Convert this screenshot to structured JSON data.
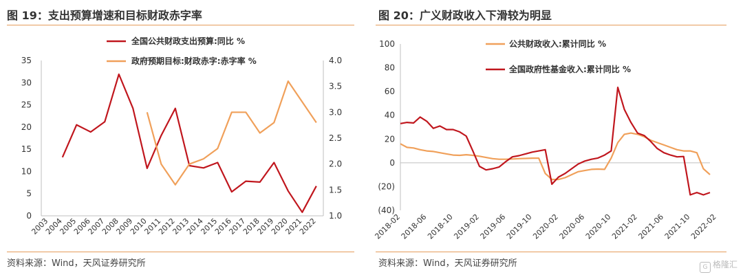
{
  "left_panel": {
    "title": "图 19：支出预算增速和目标财政赤字率",
    "source": "资料来源：Wind，天风证券研究所"
  },
  "right_panel": {
    "title": "图 20：广义财政收入下滑较为明显",
    "source": "资料来源：Wind，天风证券研究所"
  },
  "watermark": "格隆汇",
  "colors": {
    "red": "#c0161d",
    "orange": "#f0a05a",
    "rule": "#e59b5a",
    "axis": "#bfbfbf"
  },
  "chart_data": [
    {
      "type": "line",
      "categories": [
        "2003",
        "2004",
        "2005",
        "2006",
        "2007",
        "2008",
        "2009",
        "2010",
        "2011",
        "2012",
        "2013",
        "2014",
        "2015",
        "2016",
        "2017",
        "2018",
        "2019",
        "2020",
        "2021",
        "2022"
      ],
      "y_left": {
        "ticks": [
          0,
          5,
          10,
          15,
          20,
          25,
          30,
          35
        ],
        "range": [
          0,
          35
        ]
      },
      "y_right": {
        "ticks": [
          "1.0",
          "1.5",
          "2.0",
          "2.5",
          "3.0",
          "3.5",
          "4.0"
        ],
        "range": [
          1.0,
          4.0
        ]
      },
      "series": [
        {
          "name": "全国公共财政支出预算:同比 %",
          "axis": "left",
          "color": "#c0161d",
          "values": [
            null,
            13.2,
            20.5,
            18.9,
            21.2,
            31.9,
            24.2,
            10.7,
            18.1,
            24.2,
            11.3,
            10.8,
            12.0,
            5.4,
            7.8,
            7.6,
            12.0,
            5.6,
            0.8,
            6.7
          ]
        },
        {
          "name": "政府预期目标:财政赤字:赤字率 %",
          "axis": "right",
          "color": "#f0a05a",
          "values": [
            null,
            null,
            null,
            null,
            null,
            null,
            null,
            3.0,
            2.0,
            1.6,
            2.0,
            2.1,
            2.3,
            3.0,
            3.0,
            2.6,
            2.8,
            3.6,
            3.2,
            2.8
          ]
        }
      ]
    },
    {
      "type": "line",
      "x_tick_labels": [
        "2018-02",
        "2018-06",
        "2018-10",
        "2019-02",
        "2019-06",
        "2019-10",
        "2020-02",
        "2020-06",
        "2020-10",
        "2021-02",
        "2021-06",
        "2021-10",
        "2022-02"
      ],
      "y": {
        "ticks": [
          "100",
          "80",
          "60",
          "40",
          "20",
          "0",
          "(20)",
          "(40)"
        ],
        "range": [
          -40,
          100
        ]
      },
      "series": [
        {
          "name": "公共财政收入:累计同比 %",
          "color": "#f0a05a",
          "values": [
            16,
            13,
            12.5,
            11,
            10,
            9.5,
            8.5,
            7.5,
            6.5,
            6.3,
            6.8,
            6.3,
            5.5,
            4.5,
            3.5,
            3.0,
            3.0,
            3.2,
            3.5,
            3.7,
            3.9,
            3.9,
            -9,
            -14,
            -14,
            -12.5,
            -10,
            -7.5,
            -6.5,
            -5.5,
            -5.3,
            -5.5,
            4,
            17,
            24,
            25,
            24,
            22,
            19,
            17,
            15,
            13,
            11,
            10,
            10,
            8.5,
            -5,
            -10
          ]
        },
        {
          "name": "全国政府性基金收入:累计同比 %",
          "color": "#c0161d",
          "values": [
            33,
            34,
            33.5,
            38.5,
            35,
            29,
            31,
            28,
            28,
            26,
            22.5,
            10,
            -3,
            -6,
            -5,
            -3.5,
            1,
            5,
            6,
            7.5,
            9,
            10,
            11,
            -18,
            -12,
            -9,
            -5,
            -1,
            1.5,
            3,
            4,
            6.5,
            10,
            63.5,
            45,
            34,
            25,
            23,
            18,
            12,
            8.5,
            6.5,
            5,
            5.3,
            -27,
            -25,
            -27,
            -25
          ]
        }
      ]
    }
  ]
}
